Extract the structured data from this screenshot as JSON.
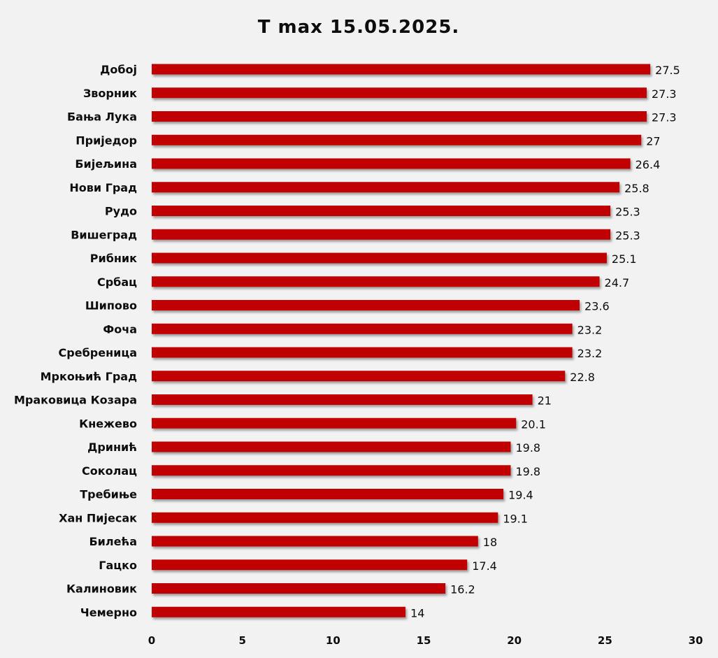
{
  "chart_data": {
    "type": "bar",
    "orientation": "horizontal",
    "title": "T max 15.05.2025.",
    "categories": [
      "Добој",
      "Зворник",
      "Бања Лука",
      "Приједор",
      "Бијељина",
      "Нови Град",
      "Рудо",
      "Вишеград",
      "Рибник",
      "Србац",
      "Шипово",
      "Фоча",
      "Сребреница",
      "Мркоњић Град",
      "Мраковица Козара",
      "Кнежево",
      "Дринић",
      "Соколац",
      "Требиње",
      "Хан Пијесак",
      "Билећа",
      "Гацко",
      "Калиновик",
      "Чемерно"
    ],
    "values": [
      27.5,
      27.3,
      27.3,
      27,
      26.4,
      25.8,
      25.3,
      25.3,
      25.1,
      24.7,
      23.6,
      23.2,
      23.2,
      22.8,
      21,
      20.1,
      19.8,
      19.8,
      19.4,
      19.1,
      18,
      17.4,
      16.2,
      14
    ],
    "value_labels": [
      "27.5",
      "27.3",
      "27.3",
      "27",
      "26.4",
      "25.8",
      "25.3",
      "25.3",
      "25.1",
      "24.7",
      "23.6",
      "23.2",
      "23.2",
      "22.8",
      "21",
      "20.1",
      "19.8",
      "19.8",
      "19.4",
      "19.1",
      "18",
      "17.4",
      "16.2",
      "14"
    ],
    "xlim": [
      0,
      30
    ],
    "xticks": [
      "0",
      "5",
      "10",
      "15",
      "20",
      "25",
      "30"
    ],
    "grid": false,
    "legend": "none",
    "bar_color": "#c00000",
    "background_color": "#f2f2f2"
  }
}
